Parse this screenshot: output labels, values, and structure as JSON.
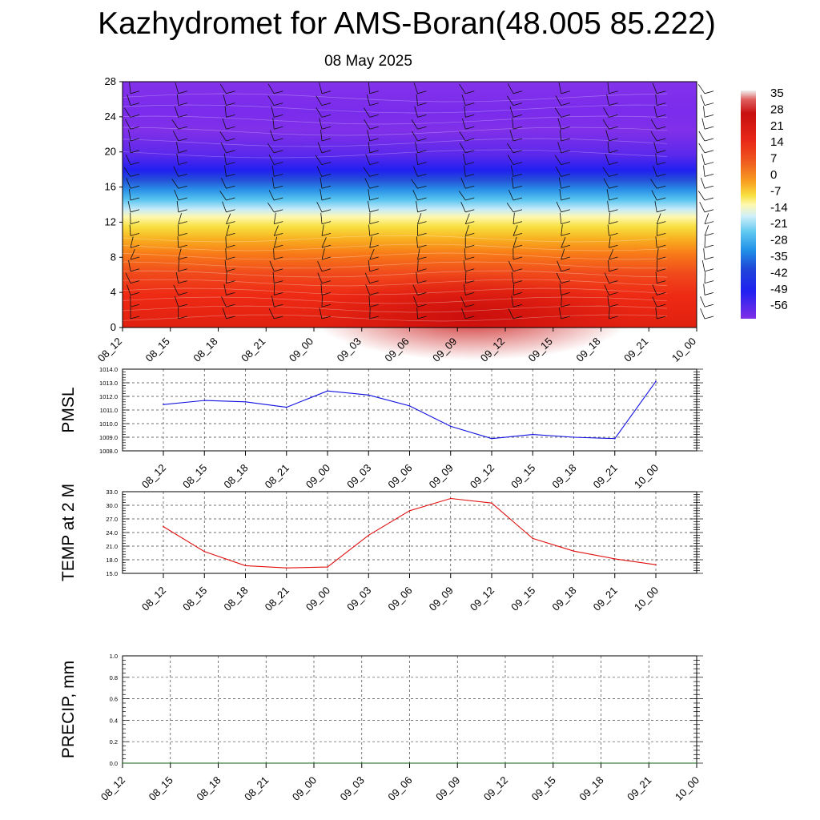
{
  "title": "Kazhydromet for AMS-Boran(48.005 85.222)",
  "subtitle": "08 May 2025",
  "chart_data": [
    {
      "type": "heatmap",
      "description_type": "temperature cross-section with wind barbs",
      "x_ticks": [
        "08_12",
        "08_15",
        "08_18",
        "08_21",
        "09_00",
        "09_03",
        "09_06",
        "09_09",
        "09_12",
        "09_15",
        "09_18",
        "09_21",
        "10_00"
      ],
      "y_ticks": [
        "0",
        "4",
        "8",
        "12",
        "16",
        "20",
        "24",
        "28"
      ],
      "ylim": [
        0,
        28
      ],
      "colorbar_labels": [
        "35",
        "28",
        "21",
        "14",
        "7",
        "0",
        "-7",
        "-14",
        "-21",
        "-28",
        "-35",
        "-42",
        "-49",
        "-56"
      ],
      "colors": [
        "#e8e8e8",
        "#d01010",
        "#e82818",
        "#f05020",
        "#f88018",
        "#f8b020",
        "#f8e040",
        "#fff8a0",
        "#d0f0f8",
        "#60c8f0",
        "#2090e8",
        "#2048d8",
        "#2020f0",
        "#8030e8"
      ]
    },
    {
      "type": "line",
      "ylabel": "PMSL",
      "x": [
        "08_12",
        "08_15",
        "08_18",
        "08_21",
        "09_00",
        "09_03",
        "09_06",
        "09_09",
        "09_12",
        "09_15",
        "09_18",
        "09_21",
        "10_00"
      ],
      "values": [
        1011.4,
        1011.7,
        1011.6,
        1011.2,
        1012.4,
        1012.1,
        1011.3,
        1009.8,
        1008.9,
        1009.2,
        1009.0,
        1008.9,
        1013.1
      ],
      "y_ticks": [
        "1008.0",
        "1009.0",
        "1010.0",
        "1011.0",
        "1012.0",
        "1013.0",
        "1014.0"
      ],
      "ylim": [
        1008,
        1014
      ],
      "color": "#1010e0",
      "grid": true
    },
    {
      "type": "line",
      "ylabel": "TEMP at 2 M",
      "x": [
        "08_12",
        "08_15",
        "08_18",
        "08_21",
        "09_00",
        "09_03",
        "09_06",
        "09_09",
        "09_12",
        "09_15",
        "09_18",
        "09_21",
        "10_00"
      ],
      "values": [
        25.3,
        19.8,
        16.7,
        16.2,
        16.4,
        23.4,
        28.8,
        31.5,
        30.5,
        22.7,
        19.9,
        18.2,
        16.9
      ],
      "y_ticks": [
        "15.0",
        "18.0",
        "21.0",
        "24.0",
        "27.0",
        "30.0",
        "33.0"
      ],
      "ylim": [
        15,
        33
      ],
      "color": "#e01010",
      "grid": true
    },
    {
      "type": "line",
      "ylabel": "PRECIP, mm",
      "x": [
        "08_12",
        "08_15",
        "08_18",
        "08_21",
        "09_00",
        "09_03",
        "09_06",
        "09_09",
        "09_12",
        "09_15",
        "09_18",
        "09_21",
        "10_00"
      ],
      "values": [
        0,
        0,
        0,
        0,
        0,
        0,
        0,
        0,
        0,
        0,
        0,
        0,
        0
      ],
      "y_ticks": [
        "0.0",
        "0.2",
        "0.4",
        "0.6",
        "0.8",
        "1.0"
      ],
      "ylim": [
        0,
        1
      ],
      "color": "#106010",
      "grid": true
    }
  ]
}
